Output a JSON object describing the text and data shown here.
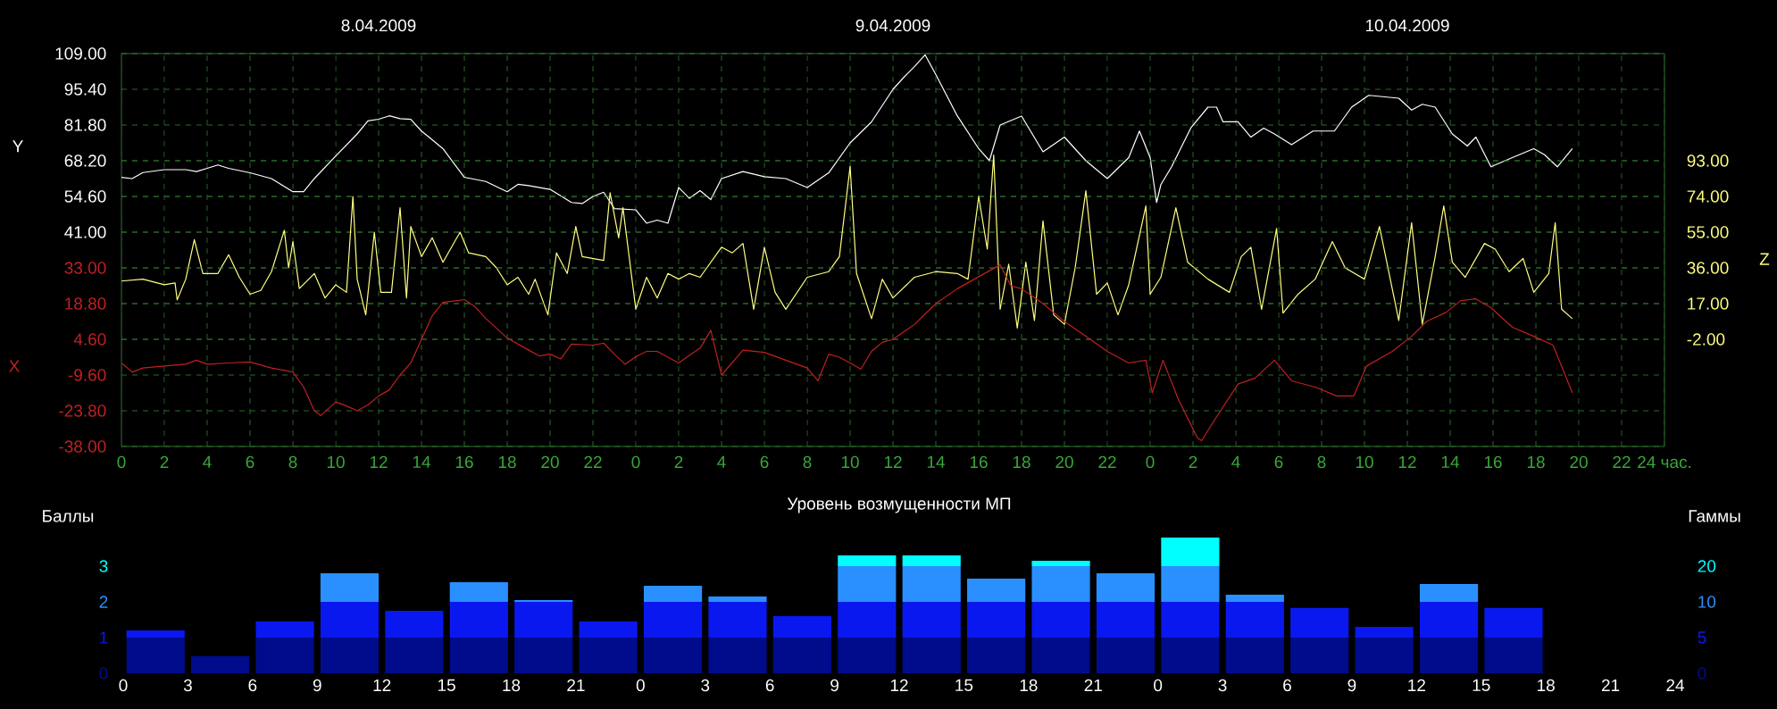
{
  "chart_data": [
    {
      "type": "line",
      "xlim": [
        "2009-04-08T00:00",
        "2009-04-11T00:00"
      ],
      "xticks": [
        {
          "value": "2009-04-08T00:00",
          "label": "0"
        },
        {
          "value": "2009-04-08T02:00",
          "label": "2"
        },
        {
          "value": "2009-04-08T04:00",
          "label": "4"
        },
        {
          "value": "2009-04-08T06:00",
          "label": "6"
        },
        {
          "value": "2009-04-08T08:00",
          "label": "8"
        },
        {
          "value": "2009-04-08T10:00",
          "label": "10"
        },
        {
          "value": "2009-04-08T12:00",
          "label": "12"
        },
        {
          "value": "2009-04-08T14:00",
          "label": "14"
        },
        {
          "value": "2009-04-08T16:00",
          "label": "16"
        },
        {
          "value": "2009-04-08T18:00",
          "label": "18"
        },
        {
          "value": "2009-04-08T20:00",
          "label": "20"
        },
        {
          "value": "2009-04-08T22:00",
          "label": "22"
        },
        {
          "value": "2009-04-09T00:00",
          "label": "0"
        },
        {
          "value": "2009-04-09T02:00",
          "label": "2"
        },
        {
          "value": "2009-04-09T04:00",
          "label": "4"
        },
        {
          "value": "2009-04-09T06:00",
          "label": "6"
        },
        {
          "value": "2009-04-09T08:00",
          "label": "8"
        },
        {
          "value": "2009-04-09T10:00",
          "label": "10"
        },
        {
          "value": "2009-04-09T12:00",
          "label": "12"
        },
        {
          "value": "2009-04-09T14:00",
          "label": "14"
        },
        {
          "value": "2009-04-09T16:00",
          "label": "16"
        },
        {
          "value": "2009-04-09T18:00",
          "label": "18"
        },
        {
          "value": "2009-04-09T20:00",
          "label": "20"
        },
        {
          "value": "2009-04-09T22:00",
          "label": "22"
        },
        {
          "value": "2009-04-10T00:00",
          "label": "0"
        },
        {
          "value": "2009-04-10T02:00",
          "label": "2"
        },
        {
          "value": "2009-04-10T04:00",
          "label": "4"
        },
        {
          "value": "2009-04-10T06:00",
          "label": "6"
        },
        {
          "value": "2009-04-10T08:00",
          "label": "8"
        },
        {
          "value": "2009-04-10T10:00",
          "label": "10"
        },
        {
          "value": "2009-04-10T12:00",
          "label": "12"
        },
        {
          "value": "2009-04-10T14:00",
          "label": "14"
        },
        {
          "value": "2009-04-10T16:00",
          "label": "16"
        },
        {
          "value": "2009-04-10T18:00",
          "label": "18"
        },
        {
          "value": "2009-04-10T20:00",
          "label": "20"
        },
        {
          "value": "2009-04-10T22:00",
          "label": "22"
        },
        {
          "value": "2009-04-11T00:00",
          "label": "24 час."
        }
      ],
      "x2lim": [
        "2009-04-08T00:00",
        "2009-04-11T00:00"
      ],
      "x2ticks": [
        {
          "value": "2009-04-08T12:00",
          "label": "8.04.2009"
        },
        {
          "value": "2009-04-09T12:00",
          "label": "9.04.2009"
        },
        {
          "value": "2009-04-10T12:00",
          "label": "10.04.2009"
        }
      ],
      "ylim": [
        -40.6,
        109
      ],
      "yticks": [
        {
          "value": 109,
          "label": "109.00"
        },
        {
          "value": 95.4,
          "label": "95.40"
        },
        {
          "value": 81.8,
          "label": "81.80"
        },
        {
          "value": 68.2,
          "label": "68.20"
        },
        {
          "value": 54.6,
          "label": "54.60"
        },
        {
          "value": 41,
          "label": "41.00"
        }
      ],
      "y3lim": [
        -38,
        118.2
      ],
      "y3ticks": [
        {
          "value": 33,
          "label": "33.00"
        },
        {
          "value": 18.8,
          "label": "18.80"
        },
        {
          "value": 4.6,
          "label": "4.60"
        },
        {
          "value": -9.6,
          "label": "-9.60"
        },
        {
          "value": -23.8,
          "label": "-23.80"
        },
        {
          "value": -38,
          "label": "-38.00"
        }
      ],
      "y2lim": [
        -59,
        150
      ],
      "y2ticks": [
        {
          "value": 93,
          "label": "93.00"
        },
        {
          "value": 74,
          "label": "74.00"
        },
        {
          "value": 55,
          "label": "55.00"
        },
        {
          "value": 36,
          "label": "36.00"
        },
        {
          "value": 17,
          "label": "17.00"
        },
        {
          "value": -2,
          "label": "-2.00"
        }
      ],
      "ylabel": "Y",
      "y2label": "Z",
      "y3label": "X",
      "grid": true,
      "series": [
        {
          "color": "#ffffff",
          "x": [
            "2009-04-08T00:00",
            "2009-04-08T00:30",
            "2009-04-08T01:00",
            "2009-04-08T02:00",
            "2009-04-08T03:00",
            "2009-04-08T03:30",
            "2009-04-08T04:00",
            "2009-04-08T04:30",
            "2009-04-08T05:00",
            "2009-04-08T06:00",
            "2009-04-08T07:00",
            "2009-04-08T08:00",
            "2009-04-08T08:30",
            "2009-04-08T09:00",
            "2009-04-08T10:00",
            "2009-04-08T11:00",
            "2009-04-08T11:30",
            "2009-04-08T12:00",
            "2009-04-08T12:30",
            "2009-04-08T13:00",
            "2009-04-08T13:30",
            "2009-04-08T14:00",
            "2009-04-08T14:30",
            "2009-04-08T15:00",
            "2009-04-08T16:00",
            "2009-04-08T17:00",
            "2009-04-08T18:00",
            "2009-04-08T18:30",
            "2009-04-08T19:00",
            "2009-04-08T20:00",
            "2009-04-08T21:00",
            "2009-04-08T21:30",
            "2009-04-08T22:00",
            "2009-04-08T22:30",
            "2009-04-08T23:00",
            "2009-04-09T00:00",
            "2009-04-09T00:30",
            "2009-04-09T01:00",
            "2009-04-09T01:30",
            "2009-04-09T02:00",
            "2009-04-09T02:30",
            "2009-04-09T03:00",
            "2009-04-09T03:30",
            "2009-04-09T04:00",
            "2009-04-09T05:00",
            "2009-04-09T06:00",
            "2009-04-09T07:00",
            "2009-04-09T08:00",
            "2009-04-09T09:00",
            "2009-04-09T10:00",
            "2009-04-09T11:00",
            "2009-04-09T12:00",
            "2009-04-09T12:30",
            "2009-04-09T13:00",
            "2009-04-09T13:30",
            "2009-04-09T14:00",
            "2009-04-09T15:00",
            "2009-04-09T16:00",
            "2009-04-09T16:30",
            "2009-04-09T17:00",
            "2009-04-09T18:00",
            "2009-04-09T19:00",
            "2009-04-09T20:00",
            "2009-04-09T21:00",
            "2009-04-09T22:00",
            "2009-04-09T23:00",
            "2009-04-09T23:30",
            "2009-04-10T00:00",
            "2009-04-10T00:18",
            "2009-04-10T00:30",
            "2009-04-10T01:00",
            "2009-04-10T01:54",
            "2009-04-10T02:42",
            "2009-04-10T03:06",
            "2009-04-10T03:24",
            "2009-04-10T04:06",
            "2009-04-10T04:42",
            "2009-04-10T05:18",
            "2009-04-10T05:48",
            "2009-04-10T06:36",
            "2009-04-10T07:36",
            "2009-04-10T08:36",
            "2009-04-10T09:24",
            "2009-04-10T10:12",
            "2009-04-10T11:36",
            "2009-04-10T12:12",
            "2009-04-10T12:42",
            "2009-04-10T13:18",
            "2009-04-10T14:06",
            "2009-04-10T14:48",
            "2009-04-10T15:12",
            "2009-04-10T15:54",
            "2009-04-10T16:54",
            "2009-04-10T17:54",
            "2009-04-10T18:24",
            "2009-04-10T19:00",
            "2009-04-10T19:42"
          ],
          "values": [
            61.9,
            61.4,
            63.7,
            64.8,
            64.8,
            64.1,
            65.3,
            66.6,
            65.3,
            63.6,
            61.4,
            56.4,
            56.4,
            61.4,
            70,
            78.4,
            83.4,
            84,
            85.3,
            84.2,
            84,
            79.5,
            76.2,
            72.8,
            61.9,
            60.3,
            56.4,
            59.2,
            58.7,
            57.3,
            52.3,
            51.9,
            54.6,
            56.2,
            50,
            49.5,
            44.4,
            45.6,
            44.4,
            58,
            53.9,
            56.8,
            53.4,
            61.4,
            64.1,
            62.1,
            61.4,
            58,
            63.6,
            75,
            83,
            95.4,
            99.9,
            104,
            108.5,
            101,
            85.3,
            72.8,
            68.2,
            81.8,
            85.2,
            71.6,
            77.2,
            68.2,
            61.4,
            69.4,
            79.5,
            69.4,
            52.3,
            59.1,
            65.9,
            80.7,
            88.6,
            88.6,
            83,
            83,
            77.2,
            80.6,
            78.4,
            74.3,
            79.5,
            79.5,
            88.6,
            93.1,
            92,
            87.5,
            89.7,
            88.6,
            78.4,
            73.8,
            77.2,
            65.9,
            69.4,
            72.8,
            70.5,
            65.9,
            72.8
          ]
        },
        {
          "color": "#c02020",
          "axis": "y3",
          "x": [
            "2009-04-08T00:00",
            "2009-04-08T00:30",
            "2009-04-08T01:00",
            "2009-04-08T02:00",
            "2009-04-08T03:00",
            "2009-04-08T03:30",
            "2009-04-08T04:00",
            "2009-04-08T05:00",
            "2009-04-08T06:00",
            "2009-04-08T07:00",
            "2009-04-08T08:00",
            "2009-04-08T08:30",
            "2009-04-08T09:00",
            "2009-04-08T09:18",
            "2009-04-08T10:00",
            "2009-04-08T10:30",
            "2009-04-08T11:00",
            "2009-04-08T11:30",
            "2009-04-08T12:00",
            "2009-04-08T12:30",
            "2009-04-08T13:00",
            "2009-04-08T13:30",
            "2009-04-08T14:00",
            "2009-04-08T14:30",
            "2009-04-08T15:00",
            "2009-04-08T16:00",
            "2009-04-08T16:30",
            "2009-04-08T17:00",
            "2009-04-08T18:00",
            "2009-04-08T19:00",
            "2009-04-08T19:30",
            "2009-04-08T20:00",
            "2009-04-08T20:30",
            "2009-04-08T21:00",
            "2009-04-08T22:00",
            "2009-04-08T22:30",
            "2009-04-08T23:00",
            "2009-04-08T23:30",
            "2009-04-09T00:00",
            "2009-04-09T00:30",
            "2009-04-09T01:00",
            "2009-04-09T02:00",
            "2009-04-09T02:30",
            "2009-04-09T03:00",
            "2009-04-09T03:30",
            "2009-04-09T04:00",
            "2009-04-09T05:00",
            "2009-04-09T06:00",
            "2009-04-09T07:00",
            "2009-04-09T08:00",
            "2009-04-09T08:30",
            "2009-04-09T09:00",
            "2009-04-09T09:30",
            "2009-04-09T10:00",
            "2009-04-09T10:30",
            "2009-04-09T11:00",
            "2009-04-09T11:30",
            "2009-04-09T12:00",
            "2009-04-09T13:00",
            "2009-04-09T14:00",
            "2009-04-09T15:00",
            "2009-04-09T16:00",
            "2009-04-09T17:00",
            "2009-04-09T17:30",
            "2009-04-09T18:00",
            "2009-04-09T19:00",
            "2009-04-09T20:00",
            "2009-04-09T21:00",
            "2009-04-09T22:00",
            "2009-04-09T23:00",
            "2009-04-09T23:48",
            "2009-04-10T00:06",
            "2009-04-10T00:36",
            "2009-04-10T01:18",
            "2009-04-10T02:12",
            "2009-04-10T02:24",
            "2009-04-10T03:06",
            "2009-04-10T04:06",
            "2009-04-10T04:54",
            "2009-04-10T05:48",
            "2009-04-10T06:36",
            "2009-04-10T07:42",
            "2009-04-10T08:42",
            "2009-04-10T09:30",
            "2009-04-10T10:06",
            "2009-04-10T11:18",
            "2009-04-10T12:12",
            "2009-04-10T12:54",
            "2009-04-10T13:48",
            "2009-04-10T14:30",
            "2009-04-10T15:12",
            "2009-04-10T15:54",
            "2009-04-10T16:54",
            "2009-04-10T17:54",
            "2009-04-10T18:48",
            "2009-04-10T19:42"
          ],
          "values": [
            -4.8,
            -8.4,
            -6.8,
            -6,
            -5.3,
            -3.7,
            -5.3,
            -4.8,
            -4.4,
            -6.8,
            -8.4,
            -14.4,
            -23.8,
            -25.7,
            -20.3,
            -21.9,
            -23.8,
            -21.5,
            -17.9,
            -15.5,
            -9.6,
            -4.8,
            4.6,
            14,
            19.3,
            20.4,
            17.6,
            12.9,
            5.1,
            0.3,
            -2,
            -1.3,
            -3.2,
            2.7,
            2.3,
            3.1,
            -1.3,
            -5.3,
            -2.3,
            -0.2,
            -0.2,
            -4.8,
            -1.8,
            1.1,
            8.2,
            -9.6,
            0.3,
            -0.6,
            -3.7,
            -6.8,
            -11.9,
            -1.3,
            -2.5,
            -4.8,
            -7.3,
            -0.2,
            3.4,
            4.6,
            10.5,
            18.8,
            24.7,
            29.5,
            34.2,
            25.9,
            24.7,
            18.8,
            11.7,
            5.8,
            -0.2,
            -4.8,
            -3.7,
            -16.7,
            -3.7,
            -19,
            -34.5,
            -35.7,
            -26.2,
            -13.2,
            -10.8,
            -3.7,
            -11.9,
            -14.4,
            -17.9,
            -17.9,
            -6,
            -0.2,
            5.8,
            11.7,
            15.3,
            20,
            20.7,
            17.2,
            9.4,
            5.8,
            2.3,
            -16.7
          ]
        },
        {
          "color": "#ffff80",
          "axis": "y2",
          "x": [
            "2009-04-08T00:00",
            "2009-04-08T01:00",
            "2009-04-08T02:00",
            "2009-04-08T02:30",
            "2009-04-08T02:36",
            "2009-04-08T03:00",
            "2009-04-08T03:24",
            "2009-04-08T03:48",
            "2009-04-08T04:30",
            "2009-04-08T05:00",
            "2009-04-08T05:30",
            "2009-04-08T06:00",
            "2009-04-08T06:30",
            "2009-04-08T07:00",
            "2009-04-08T07:36",
            "2009-04-08T07:48",
            "2009-04-08T08:00",
            "2009-04-08T08:18",
            "2009-04-08T09:00",
            "2009-04-08T09:30",
            "2009-04-08T10:00",
            "2009-04-08T10:30",
            "2009-04-08T10:48",
            "2009-04-08T11:00",
            "2009-04-08T11:24",
            "2009-04-08T11:48",
            "2009-04-08T12:06",
            "2009-04-08T12:36",
            "2009-04-08T13:00",
            "2009-04-08T13:18",
            "2009-04-08T13:30",
            "2009-04-08T14:00",
            "2009-04-08T14:30",
            "2009-04-08T15:00",
            "2009-04-08T15:48",
            "2009-04-08T16:12",
            "2009-04-08T17:00",
            "2009-04-08T17:30",
            "2009-04-08T18:00",
            "2009-04-08T18:30",
            "2009-04-08T19:00",
            "2009-04-08T19:18",
            "2009-04-08T19:54",
            "2009-04-08T20:18",
            "2009-04-08T20:48",
            "2009-04-08T21:12",
            "2009-04-08T21:30",
            "2009-04-08T22:30",
            "2009-04-08T22:48",
            "2009-04-08T23:12",
            "2009-04-08T23:24",
            "2009-04-09T00:00",
            "2009-04-09T00:30",
            "2009-04-09T01:00",
            "2009-04-09T01:30",
            "2009-04-09T02:00",
            "2009-04-09T02:30",
            "2009-04-09T03:00",
            "2009-04-09T04:00",
            "2009-04-09T04:30",
            "2009-04-09T05:00",
            "2009-04-09T05:30",
            "2009-04-09T06:00",
            "2009-04-09T06:30",
            "2009-04-09T07:00",
            "2009-04-09T08:00",
            "2009-04-09T09:00",
            "2009-04-09T09:30",
            "2009-04-09T10:00",
            "2009-04-09T10:18",
            "2009-04-09T11:00",
            "2009-04-09T11:30",
            "2009-04-09T12:00",
            "2009-04-09T13:00",
            "2009-04-09T14:00",
            "2009-04-09T15:00",
            "2009-04-09T15:30",
            "2009-04-09T16:00",
            "2009-04-09T16:24",
            "2009-04-09T16:42",
            "2009-04-09T17:00",
            "2009-04-09T17:24",
            "2009-04-09T17:48",
            "2009-04-09T18:12",
            "2009-04-09T18:36",
            "2009-04-09T19:00",
            "2009-04-09T19:30",
            "2009-04-09T20:00",
            "2009-04-09T20:30",
            "2009-04-09T21:00",
            "2009-04-09T21:30",
            "2009-04-09T22:00",
            "2009-04-09T22:30",
            "2009-04-09T23:00",
            "2009-04-09T23:48",
            "2009-04-10T00:00",
            "2009-04-10T00:30",
            "2009-04-10T01:12",
            "2009-04-10T01:45",
            "2009-04-10T02:42",
            "2009-04-10T03:42",
            "2009-04-10T04:15",
            "2009-04-10T04:42",
            "2009-04-10T05:12",
            "2009-04-10T05:54",
            "2009-04-10T06:12",
            "2009-04-10T06:54",
            "2009-04-10T07:42",
            "2009-04-10T08:30",
            "2009-04-10T09:06",
            "2009-04-10T10:00",
            "2009-04-10T10:42",
            "2009-04-10T11:36",
            "2009-04-10T12:12",
            "2009-04-10T12:42",
            "2009-04-10T13:18",
            "2009-04-10T13:42",
            "2009-04-10T14:06",
            "2009-04-10T14:42",
            "2009-04-10T15:36",
            "2009-04-10T16:06",
            "2009-04-10T16:45",
            "2009-04-10T17:24",
            "2009-04-10T17:54",
            "2009-04-10T18:36",
            "2009-04-10T18:54",
            "2009-04-10T19:12",
            "2009-04-10T19:42"
          ],
          "values": [
            29,
            30,
            27,
            28,
            19,
            30,
            51,
            33,
            33,
            43,
            31,
            22,
            24,
            34,
            56,
            36,
            50,
            25,
            33,
            20,
            27,
            23,
            74,
            30,
            11,
            55,
            23,
            23,
            68,
            20,
            58,
            42,
            52,
            39,
            55,
            44,
            42,
            36,
            27,
            31,
            22,
            30,
            11,
            44,
            33,
            58,
            42,
            40,
            76,
            52,
            68,
            14,
            31,
            20,
            33,
            30,
            33,
            31,
            47,
            44,
            49,
            14,
            47,
            23,
            14,
            31,
            34,
            42,
            90,
            33,
            9,
            30,
            20,
            31,
            34,
            33,
            30,
            74,
            46,
            96,
            14,
            38,
            4,
            39,
            8,
            61,
            11,
            6,
            36,
            77,
            22,
            28,
            11,
            27,
            69,
            22,
            31,
            68,
            39,
            30,
            23,
            42,
            47,
            14,
            57,
            12,
            22,
            30,
            50,
            36,
            30,
            58,
            8,
            60,
            6,
            42,
            69,
            39,
            31,
            49,
            46,
            34,
            41,
            23,
            33,
            60,
            14,
            9
          ]
        }
      ]
    },
    {
      "type": "bar",
      "stacked": true,
      "title": "Уровень возмущенности МП",
      "ylabel": "Баллы",
      "y2label": "Гаммы",
      "ylim": [
        0,
        4
      ],
      "yticks": [
        0,
        1,
        2,
        3
      ],
      "annotations": [
        "0",
        "5",
        "10",
        "20"
      ],
      "x": [
        "2009-04-08T01:30",
        "2009-04-08T04:30",
        "2009-04-08T07:30",
        "2009-04-08T10:30",
        "2009-04-08T13:30",
        "2009-04-08T16:30",
        "2009-04-08T19:30",
        "2009-04-08T22:30",
        "2009-04-09T01:30",
        "2009-04-09T04:30",
        "2009-04-09T07:30",
        "2009-04-09T10:30",
        "2009-04-09T13:30",
        "2009-04-09T16:30",
        "2009-04-09T19:30",
        "2009-04-09T22:30",
        "2009-04-10T01:30",
        "2009-04-10T04:30",
        "2009-04-10T07:30",
        "2009-04-10T10:30",
        "2009-04-10T13:30",
        "2009-04-10T16:30"
      ],
      "xlim": [
        "2009-04-08T00:00",
        "2009-04-11T00:00"
      ],
      "xticks": [
        {
          "value": "2009-04-08T00:00",
          "label": "0"
        },
        {
          "value": "2009-04-08T03:00",
          "label": "3"
        },
        {
          "value": "2009-04-08T06:00",
          "label": "6"
        },
        {
          "value": "2009-04-08T09:00",
          "label": "9"
        },
        {
          "value": "2009-04-08T12:00",
          "label": "12"
        },
        {
          "value": "2009-04-08T15:00",
          "label": "15"
        },
        {
          "value": "2009-04-08T18:00",
          "label": "18"
        },
        {
          "value": "2009-04-08T21:00",
          "label": "21"
        },
        {
          "value": "2009-04-09T00:00",
          "label": "0"
        },
        {
          "value": "2009-04-09T03:00",
          "label": "3"
        },
        {
          "value": "2009-04-09T06:00",
          "label": "6"
        },
        {
          "value": "2009-04-09T09:00",
          "label": "9"
        },
        {
          "value": "2009-04-09T12:00",
          "label": "12"
        },
        {
          "value": "2009-04-09T15:00",
          "label": "15"
        },
        {
          "value": "2009-04-09T18:00",
          "label": "18"
        },
        {
          "value": "2009-04-09T21:00",
          "label": "21"
        },
        {
          "value": "2009-04-10T00:00",
          "label": "0"
        },
        {
          "value": "2009-04-10T03:00",
          "label": "3"
        },
        {
          "value": "2009-04-10T06:00",
          "label": "6"
        },
        {
          "value": "2009-04-10T09:00",
          "label": "9"
        },
        {
          "value": "2009-04-10T12:00",
          "label": "12"
        },
        {
          "value": "2009-04-10T15:00",
          "label": "15"
        },
        {
          "value": "2009-04-10T18:00",
          "label": "18"
        },
        {
          "value": "2009-04-10T21:00",
          "label": "21"
        },
        {
          "value": "2009-04-11T00:00",
          "label": "24"
        }
      ],
      "series": [
        {
          "color": "#000c8c",
          "values": [
            1,
            0.48,
            1,
            1,
            1,
            1,
            1,
            1,
            1,
            1,
            1,
            1,
            1,
            1,
            1,
            1,
            1,
            1,
            1,
            1,
            1,
            1
          ]
        },
        {
          "color": "#0a18f0",
          "values": [
            0.2,
            0,
            0.45,
            1,
            0.75,
            1,
            1,
            0.45,
            1,
            1,
            0.6,
            1,
            1,
            1,
            1,
            1,
            1,
            1,
            0.83,
            0.3,
            1,
            0.83
          ]
        },
        {
          "color": "#2a90ff",
          "values": [
            0,
            0,
            0,
            0.8,
            0,
            0.55,
            0.05,
            0,
            0.45,
            0.15,
            0,
            1,
            1,
            0.65,
            1,
            0.8,
            1,
            0.2,
            0,
            0,
            0.5,
            0
          ]
        },
        {
          "color": "#00ffff",
          "values": [
            0,
            0,
            0,
            0,
            0,
            0,
            0,
            0,
            0,
            0,
            0,
            0.3,
            0.3,
            0,
            0.15,
            0,
            0.8,
            0,
            0,
            0,
            0,
            0
          ]
        }
      ]
    }
  ]
}
